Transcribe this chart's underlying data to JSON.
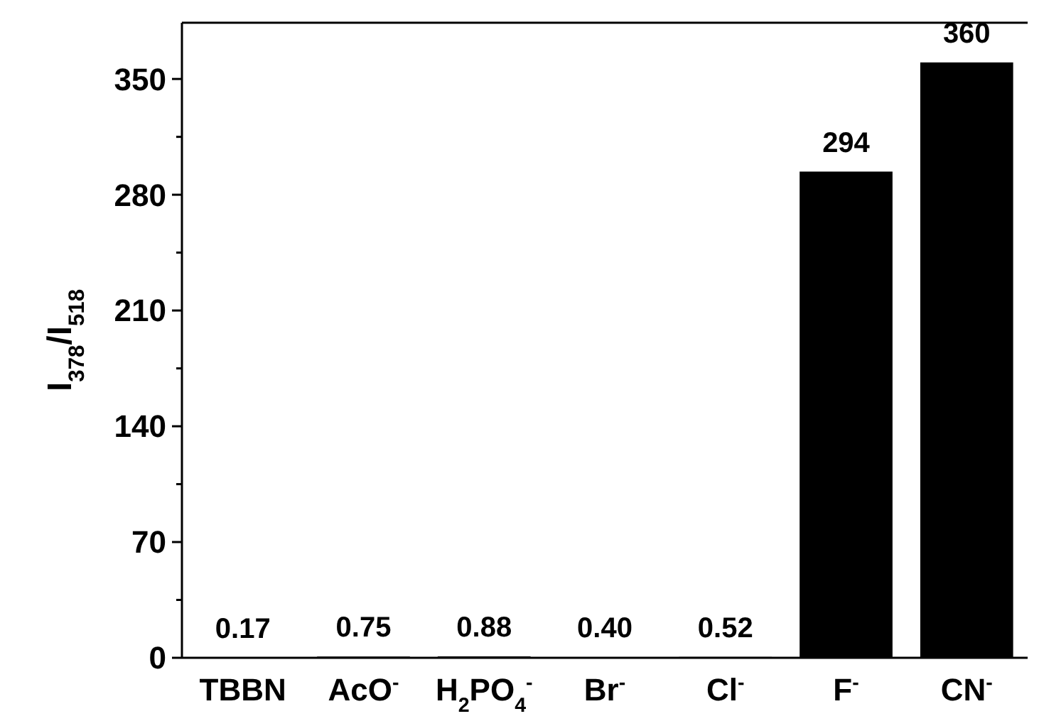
{
  "chart_data": {
    "type": "bar",
    "ylabel": "I$_{378}$/I$_{518}$",
    "categories": [
      "TBBN",
      "AcO$^{-}$",
      "H$_{2}$PO$_{4}$$^{-}$",
      "Br$^{-}$",
      "Cl$^{-}$",
      "F$^{-}$",
      "CN$^{-}$"
    ],
    "values": [
      0.17,
      0.75,
      0.88,
      0.4,
      0.52,
      294,
      360
    ],
    "value_labels": [
      "0.17",
      "0.75",
      "0.88",
      "0.40",
      "0.52",
      "294",
      "360"
    ],
    "color": "#000000",
    "ylim": [
      0,
      384
    ],
    "yticks": [
      0,
      {
        "value": 35,
        "label": null
      },
      70,
      {
        "value": 105,
        "label": null
      },
      140,
      {
        "value": 175,
        "label": null
      },
      210,
      {
        "value": 245,
        "label": null
      },
      280,
      {
        "value": 315,
        "label": null
      },
      350
    ],
    "grid": false
  }
}
